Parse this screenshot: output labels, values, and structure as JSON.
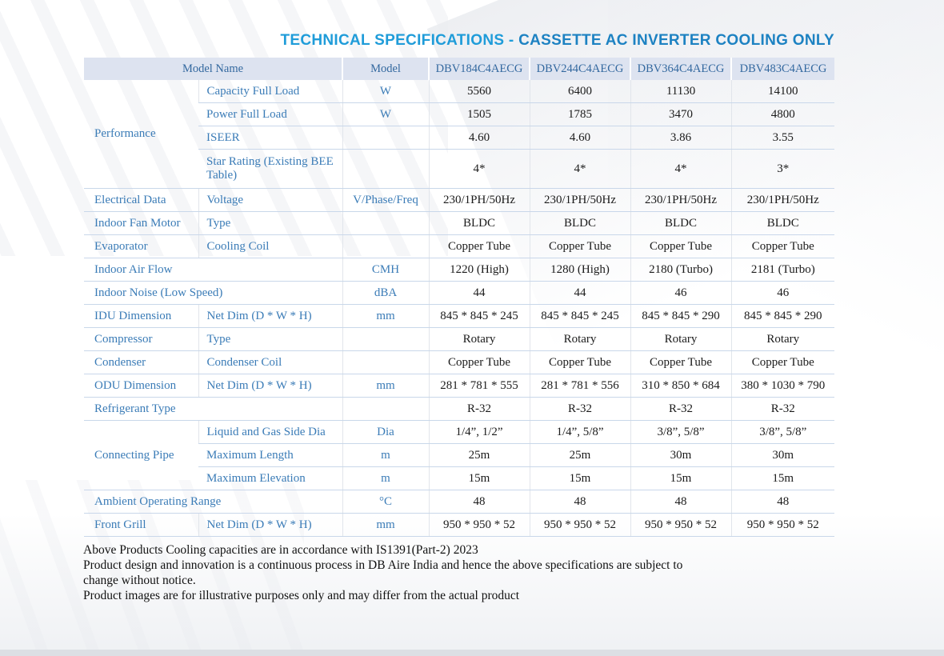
{
  "title": {
    "part1": "TECHNICAL SPECIFICATIONS - ",
    "part2": "CASSETTE AC INVERTER COOLING ONLY"
  },
  "colors": {
    "title_blue_light": "#1f9cd9",
    "title_blue_dark": "#1d82c2",
    "header_bg": "#dde3f0",
    "label_blue": "#3b7cb7",
    "row_line": "#c9d7ea"
  },
  "table": {
    "header": {
      "model_name": "Model Name",
      "model_label": "Model",
      "models": [
        "DBV184C4AECG",
        "DBV244C4AECG",
        "DBV364C4AECG",
        "DBV483C4AECG"
      ]
    },
    "rows": [
      {
        "cat": "Performance",
        "catRows": 4,
        "label": "Capacity Full Load",
        "unit": "W",
        "values": [
          "5560",
          "6400",
          "11130",
          "14100"
        ]
      },
      {
        "label": "Power Full Load",
        "unit": "W",
        "values": [
          "1505",
          "1785",
          "3470",
          "4800"
        ]
      },
      {
        "label": "ISEER",
        "unit": "",
        "values": [
          "4.60",
          "4.60",
          "3.86",
          "3.55"
        ]
      },
      {
        "label": "Star Rating (Existing BEE Table)",
        "unit": "",
        "values": [
          "4*",
          "4*",
          "4*",
          "3*"
        ],
        "tall": true
      },
      {
        "cat": "Electrical Data",
        "label": "Voltage",
        "unit": "V/Phase/Freq",
        "values": [
          "230/1PH/50Hz",
          "230/1PH/50Hz",
          "230/1PH/50Hz",
          "230/1PH/50Hz"
        ]
      },
      {
        "cat": "Indoor Fan Motor",
        "label": "Type",
        "unit": "",
        "values": [
          "BLDC",
          "BLDC",
          "BLDC",
          "BLDC"
        ]
      },
      {
        "cat": "Evaporator",
        "label": "Cooling Coil",
        "unit": "",
        "values": [
          "Copper Tube",
          "Copper Tube",
          "Copper Tube",
          "Copper Tube"
        ]
      },
      {
        "merged": true,
        "label": "Indoor Air Flow",
        "unit": "CMH",
        "values": [
          "1220 (High)",
          "1280 (High)",
          "2180 (Turbo)",
          "2181 (Turbo)"
        ]
      },
      {
        "merged": true,
        "label": "Indoor Noise (Low Speed)",
        "unit": "dBA",
        "values": [
          "44",
          "44",
          "46",
          "46"
        ]
      },
      {
        "cat": "IDU Dimension",
        "label": "Net Dim (D * W * H)",
        "unit": "mm",
        "values": [
          "845 * 845 * 245",
          "845 * 845 * 245",
          "845 * 845 * 290",
          "845 * 845 * 290"
        ]
      },
      {
        "cat": "Compressor",
        "label": "Type",
        "unit": "",
        "values": [
          "Rotary",
          "Rotary",
          "Rotary",
          "Rotary"
        ]
      },
      {
        "cat": "Condenser",
        "label": "Condenser Coil",
        "unit": "",
        "values": [
          "Copper Tube",
          "Copper Tube",
          "Copper Tube",
          "Copper Tube"
        ]
      },
      {
        "cat": "ODU Dimension",
        "label": "Net Dim (D * W * H)",
        "unit": "mm",
        "values": [
          "281 * 781 * 555",
          "281 * 781 * 556",
          "310 * 850 * 684",
          "380 * 1030 * 790"
        ]
      },
      {
        "merged": true,
        "label": "Refrigerant Type",
        "unit": "",
        "values": [
          "R-32",
          "R-32",
          "R-32",
          "R-32"
        ]
      },
      {
        "cat": "Connecting Pipe",
        "catRows": 3,
        "label": "Liquid and Gas Side Dia",
        "unit": "Dia",
        "values": [
          "1/4”, 1/2”",
          "1/4”, 5/8”",
          "3/8”, 5/8”",
          "3/8”, 5/8”"
        ]
      },
      {
        "label": "Maximum Length",
        "unit": "m",
        "values": [
          "25m",
          "25m",
          "30m",
          "30m"
        ]
      },
      {
        "label": "Maximum Elevation",
        "unit": "m",
        "values": [
          "15m",
          "15m",
          "15m",
          "15m"
        ]
      },
      {
        "merged": true,
        "label": "Ambient Operating Range",
        "unit": "°C",
        "values": [
          "48",
          "48",
          "48",
          "48"
        ]
      },
      {
        "cat": "Front Grill",
        "label": "Net Dim (D * W * H)",
        "unit": "mm",
        "values": [
          "950 * 950 * 52",
          "950 * 950 * 52",
          "950 * 950 * 52",
          "950 * 950 * 52"
        ]
      }
    ]
  },
  "notes": [
    "Above Products Cooling capacities are in accordance with IS1391(Part-2) 2023",
    "Product design and innovation is a continuous process in DB Aire India and hence the above specifications are subject to change without notice.",
    "Product images are for illustrative purposes only and may differ from the actual product"
  ]
}
